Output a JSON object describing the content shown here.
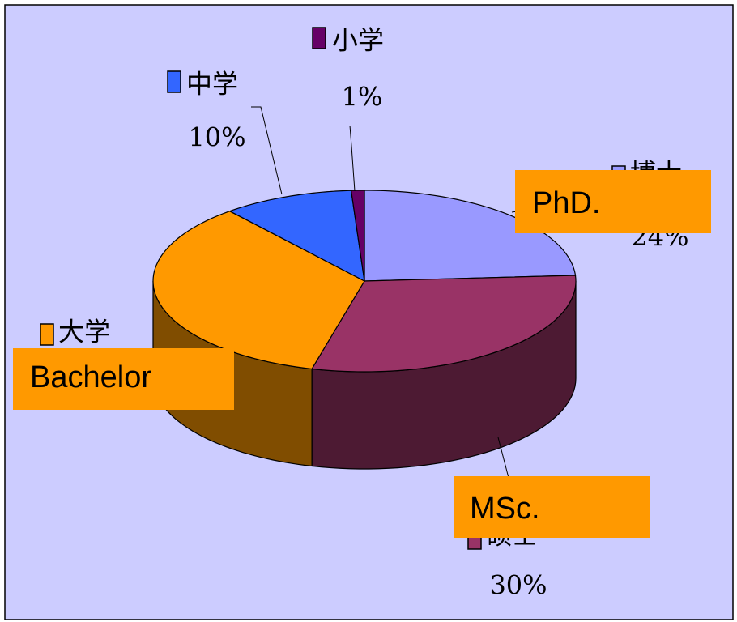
{
  "chart_data": {
    "type": "pie",
    "categories": [
      "博士",
      "硕士",
      "大学",
      "中学",
      "小学"
    ],
    "values": [
      24,
      30,
      35,
      10,
      1
    ],
    "value_labels": [
      "24%",
      "30%",
      null,
      "10%",
      "1%"
    ],
    "colors": [
      "#9999ff",
      "#993366",
      "#ff9900",
      "#3366ff",
      "#660066"
    ],
    "annotations": [
      "PhD.",
      "MSc.",
      "Bachelor"
    ]
  }
}
